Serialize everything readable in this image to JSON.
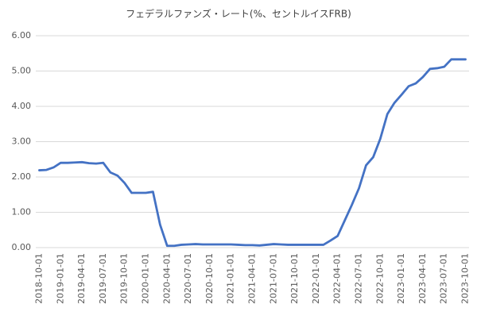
{
  "chart_data": {
    "type": "line",
    "title": "フェデラルファンズ・レート(%、セントルイスFRB)",
    "categories": [
      "2018-10-01",
      null,
      null,
      "2019-01-01",
      null,
      null,
      "2019-04-01",
      null,
      null,
      "2019-07-01",
      null,
      null,
      "2019-10-01",
      null,
      null,
      "2020-01-01",
      null,
      null,
      "2020-04-01",
      null,
      null,
      "2020-07-01",
      null,
      null,
      "2020-10-01",
      null,
      null,
      "2021-01-01",
      null,
      null,
      "2021-04-01",
      null,
      null,
      "2021-07-01",
      null,
      null,
      "2021-10-01",
      null,
      null,
      "2022-01-01",
      null,
      null,
      "2022-04-01",
      null,
      null,
      "2022-07-01",
      null,
      null,
      "2022-10-01",
      null,
      null,
      "2023-01-01",
      null,
      null,
      "2023-04-01",
      null,
      null,
      "2023-07-01",
      null,
      null,
      "2023-10-01"
    ],
    "values": [
      2.19,
      2.2,
      2.27,
      2.4,
      2.4,
      2.41,
      2.42,
      2.39,
      2.38,
      2.4,
      2.13,
      2.04,
      1.83,
      1.55,
      1.55,
      1.55,
      1.58,
      0.65,
      0.05,
      0.05,
      0.08,
      0.09,
      0.1,
      0.09,
      0.09,
      0.09,
      0.09,
      0.09,
      0.08,
      0.07,
      0.07,
      0.06,
      0.08,
      0.1,
      0.09,
      0.08,
      0.08,
      0.08,
      0.08,
      0.08,
      0.08,
      0.2,
      0.33,
      0.77,
      1.21,
      1.68,
      2.33,
      2.56,
      3.08,
      3.78,
      4.1,
      4.33,
      4.57,
      4.65,
      4.83,
      5.06,
      5.08,
      5.12,
      5.33,
      5.33,
      5.33
    ],
    "color": "#4472c4",
    "ylim": [
      0,
      6
    ],
    "yticks": [
      {
        "value": 0,
        "label": "0.00"
      },
      {
        "value": 1,
        "label": "1.00"
      },
      {
        "value": 2,
        "label": "2.00"
      },
      {
        "value": 3,
        "label": "3.00"
      },
      {
        "value": 4,
        "label": "4.00"
      },
      {
        "value": 5,
        "label": "5.00"
      },
      {
        "value": 6,
        "label": "6.00"
      }
    ],
    "grid": true
  }
}
